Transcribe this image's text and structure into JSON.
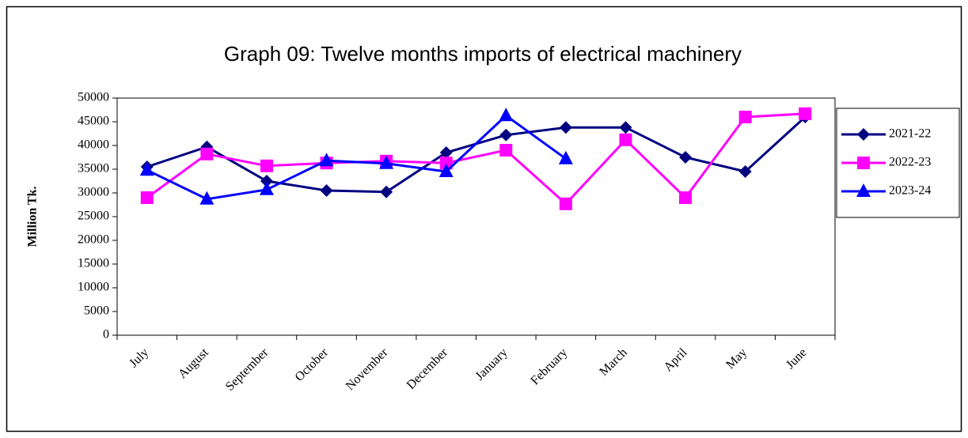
{
  "chart_data": {
    "type": "line",
    "title": "Graph 09: Twelve months imports of electrical machinery",
    "y_label": "Million Tk.",
    "categories": [
      "July",
      "August",
      "September",
      "October",
      "November",
      "December",
      "January",
      "February",
      "March",
      "April",
      "May",
      "June"
    ],
    "series": [
      {
        "name": "2021-22",
        "color": "#000080",
        "marker": "diamond",
        "values": [
          35500,
          39700,
          32500,
          30500,
          30200,
          38500,
          42200,
          43800,
          43800,
          37500,
          34500,
          46000
        ]
      },
      {
        "name": "2022-23",
        "color": "#ff00ff",
        "marker": "square",
        "values": [
          29000,
          38200,
          35700,
          36300,
          36700,
          36300,
          39000,
          27700,
          41200,
          29000,
          46000,
          46700
        ]
      },
      {
        "name": "2023-24",
        "color": "#0000ff",
        "marker": "triangle",
        "values": [
          34800,
          28700,
          30700,
          36800,
          36200,
          34500,
          46300,
          37200,
          null,
          null,
          null,
          null
        ]
      }
    ],
    "ylim": [
      0,
      50000
    ],
    "yticks": [
      0,
      5000,
      10000,
      15000,
      20000,
      25000,
      30000,
      35000,
      40000,
      45000,
      50000
    ],
    "grid": false,
    "legend": "right"
  }
}
